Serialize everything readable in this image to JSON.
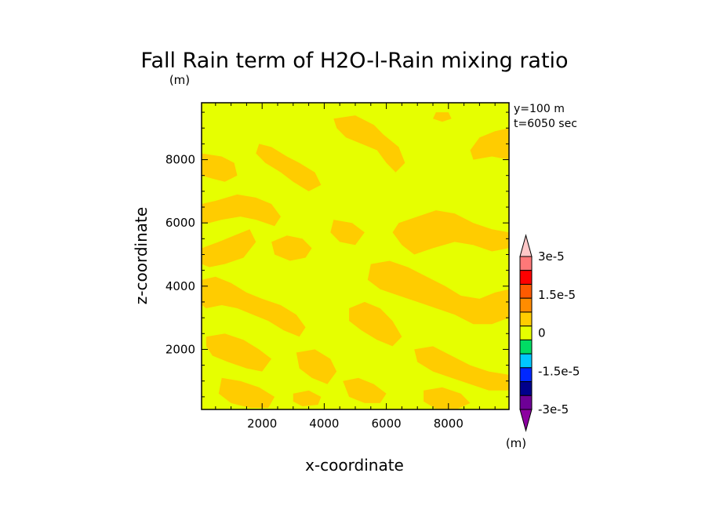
{
  "chart_data": {
    "type": "heatmap",
    "title": "Fall Rain term of H2O-l-Rain mixing ratio",
    "title_unit": "(m)",
    "annotations": [
      "y=100 m",
      "t=6050 sec"
    ],
    "xlabel": "x-coordinate",
    "ylabel": "z-coordinate",
    "xlim": [
      50,
      9950
    ],
    "ylim": [
      100,
      9800
    ],
    "xticks": [
      {
        "value": 2000,
        "label": "2000"
      },
      {
        "value": 4000,
        "label": "4000"
      },
      {
        "value": 6000,
        "label": "6000"
      },
      {
        "value": 8000,
        "label": "8000"
      }
    ],
    "yticks": [
      {
        "value": 2000,
        "label": "2000"
      },
      {
        "value": 4000,
        "label": "4000"
      },
      {
        "value": 6000,
        "label": "6000"
      },
      {
        "value": 8000,
        "label": "8000"
      }
    ],
    "background_level_color": "#e6ff00",
    "contour_level_color": "#ffcc00",
    "contour_regions": [
      [
        [
          9950,
          9000
        ],
        [
          9500,
          8900
        ],
        [
          9000,
          8700
        ],
        [
          8700,
          8300
        ],
        [
          8800,
          8000
        ],
        [
          9400,
          8100
        ],
        [
          9950,
          8000
        ]
      ],
      [
        [
          4300,
          9300
        ],
        [
          5000,
          9400
        ],
        [
          5600,
          9100
        ],
        [
          5900,
          8800
        ],
        [
          6400,
          8400
        ],
        [
          6600,
          7900
        ],
        [
          6300,
          7600
        ],
        [
          6000,
          7900
        ],
        [
          5700,
          8300
        ],
        [
          5200,
          8500
        ],
        [
          4700,
          8700
        ],
        [
          4400,
          9000
        ]
      ],
      [
        [
          1900,
          8500
        ],
        [
          2300,
          8400
        ],
        [
          2800,
          8100
        ],
        [
          3200,
          7900
        ],
        [
          3700,
          7600
        ],
        [
          3900,
          7200
        ],
        [
          3500,
          7000
        ],
        [
          3000,
          7300
        ],
        [
          2600,
          7600
        ],
        [
          2100,
          7900
        ],
        [
          1800,
          8200
        ]
      ],
      [
        [
          50,
          8200
        ],
        [
          700,
          8100
        ],
        [
          1100,
          7900
        ],
        [
          1200,
          7500
        ],
        [
          800,
          7300
        ],
        [
          400,
          7400
        ],
        [
          50,
          7500
        ]
      ],
      [
        [
          50,
          6600
        ],
        [
          500,
          6700
        ],
        [
          1200,
          6900
        ],
        [
          1800,
          6800
        ],
        [
          2300,
          6600
        ],
        [
          2600,
          6200
        ],
        [
          2400,
          5900
        ],
        [
          1800,
          6100
        ],
        [
          1300,
          6200
        ],
        [
          700,
          6100
        ],
        [
          300,
          6000
        ],
        [
          50,
          6000
        ]
      ],
      [
        [
          50,
          5200
        ],
        [
          600,
          5400
        ],
        [
          1100,
          5600
        ],
        [
          1600,
          5800
        ],
        [
          1800,
          5400
        ],
        [
          1400,
          4900
        ],
        [
          800,
          4700
        ],
        [
          300,
          4600
        ],
        [
          50,
          4700
        ]
      ],
      [
        [
          2300,
          5400
        ],
        [
          2800,
          5600
        ],
        [
          3300,
          5500
        ],
        [
          3600,
          5200
        ],
        [
          3400,
          4900
        ],
        [
          2900,
          4800
        ],
        [
          2400,
          5000
        ]
      ],
      [
        [
          4300,
          6100
        ],
        [
          4900,
          6000
        ],
        [
          5300,
          5700
        ],
        [
          5000,
          5300
        ],
        [
          4500,
          5400
        ],
        [
          4200,
          5700
        ]
      ],
      [
        [
          6400,
          6000
        ],
        [
          7000,
          6200
        ],
        [
          7600,
          6400
        ],
        [
          8200,
          6300
        ],
        [
          8800,
          6000
        ],
        [
          9400,
          5800
        ],
        [
          9950,
          5700
        ],
        [
          9950,
          5200
        ],
        [
          9400,
          5100
        ],
        [
          8800,
          5300
        ],
        [
          8200,
          5400
        ],
        [
          7500,
          5200
        ],
        [
          6900,
          5000
        ],
        [
          6500,
          5300
        ],
        [
          6200,
          5700
        ]
      ],
      [
        [
          50,
          4200
        ],
        [
          500,
          4300
        ],
        [
          1000,
          4100
        ],
        [
          1500,
          3800
        ],
        [
          2000,
          3600
        ],
        [
          2600,
          3400
        ],
        [
          3100,
          3100
        ],
        [
          3400,
          2700
        ],
        [
          3200,
          2400
        ],
        [
          2700,
          2600
        ],
        [
          2200,
          2900
        ],
        [
          1700,
          3100
        ],
        [
          1200,
          3300
        ],
        [
          700,
          3400
        ],
        [
          200,
          3300
        ],
        [
          50,
          3400
        ]
      ],
      [
        [
          5500,
          4700
        ],
        [
          6100,
          4800
        ],
        [
          6700,
          4600
        ],
        [
          7300,
          4300
        ],
        [
          7900,
          4000
        ],
        [
          8400,
          3700
        ],
        [
          9000,
          3600
        ],
        [
          9500,
          3800
        ],
        [
          9950,
          3900
        ],
        [
          9950,
          3000
        ],
        [
          9400,
          2800
        ],
        [
          8800,
          2800
        ],
        [
          8200,
          3100
        ],
        [
          7600,
          3300
        ],
        [
          7000,
          3500
        ],
        [
          6400,
          3700
        ],
        [
          5800,
          3900
        ],
        [
          5400,
          4200
        ]
      ],
      [
        [
          4800,
          3300
        ],
        [
          5300,
          3500
        ],
        [
          5800,
          3300
        ],
        [
          6200,
          2900
        ],
        [
          6500,
          2400
        ],
        [
          6200,
          2100
        ],
        [
          5700,
          2300
        ],
        [
          5200,
          2600
        ],
        [
          4800,
          2900
        ]
      ],
      [
        [
          200,
          2400
        ],
        [
          800,
          2500
        ],
        [
          1400,
          2300
        ],
        [
          1900,
          2000
        ],
        [
          2300,
          1700
        ],
        [
          2000,
          1300
        ],
        [
          1500,
          1400
        ],
        [
          900,
          1600
        ],
        [
          400,
          1800
        ],
        [
          200,
          2100
        ]
      ],
      [
        [
          3100,
          1900
        ],
        [
          3700,
          2000
        ],
        [
          4200,
          1700
        ],
        [
          4400,
          1300
        ],
        [
          4100,
          900
        ],
        [
          3600,
          1100
        ],
        [
          3200,
          1400
        ]
      ],
      [
        [
          6900,
          2000
        ],
        [
          7500,
          2100
        ],
        [
          8100,
          1800
        ],
        [
          8700,
          1500
        ],
        [
          9300,
          1300
        ],
        [
          9950,
          1200
        ],
        [
          9950,
          700
        ],
        [
          9300,
          700
        ],
        [
          8700,
          900
        ],
        [
          8100,
          1100
        ],
        [
          7500,
          1300
        ],
        [
          7000,
          1600
        ]
      ],
      [
        [
          700,
          1100
        ],
        [
          1300,
          1000
        ],
        [
          1900,
          800
        ],
        [
          2400,
          500
        ],
        [
          2200,
          150
        ],
        [
          1600,
          150
        ],
        [
          1000,
          300
        ],
        [
          600,
          600
        ]
      ],
      [
        [
          4600,
          1000
        ],
        [
          5100,
          1100
        ],
        [
          5600,
          900
        ],
        [
          6000,
          600
        ],
        [
          5800,
          300
        ],
        [
          5300,
          300
        ],
        [
          4800,
          500
        ]
      ],
      [
        [
          7200,
          700
        ],
        [
          7800,
          800
        ],
        [
          8400,
          600
        ],
        [
          8700,
          300
        ],
        [
          8300,
          120
        ],
        [
          7600,
          120
        ],
        [
          7200,
          350
        ]
      ],
      [
        [
          3000,
          600
        ],
        [
          3500,
          700
        ],
        [
          3900,
          500
        ],
        [
          3800,
          250
        ],
        [
          3300,
          200
        ],
        [
          3000,
          350
        ]
      ],
      [
        [
          7600,
          9500
        ],
        [
          8000,
          9500
        ],
        [
          8100,
          9300
        ],
        [
          7800,
          9200
        ],
        [
          7500,
          9300
        ]
      ]
    ],
    "colorbar": {
      "colors": [
        "#8c00a0",
        "#6e0096",
        "#00008c",
        "#0028ff",
        "#00c8ff",
        "#00dc64",
        "#e6ff00",
        "#ffcc00",
        "#ff8c00",
        "#ff5a00",
        "#ff0000",
        "#ff7878",
        "#ffc8c8"
      ],
      "tick_labels": [
        "3e-5",
        "1.5e-5",
        "0",
        "-1.5e-5",
        "-3e-5"
      ],
      "unit": "(m)"
    }
  }
}
